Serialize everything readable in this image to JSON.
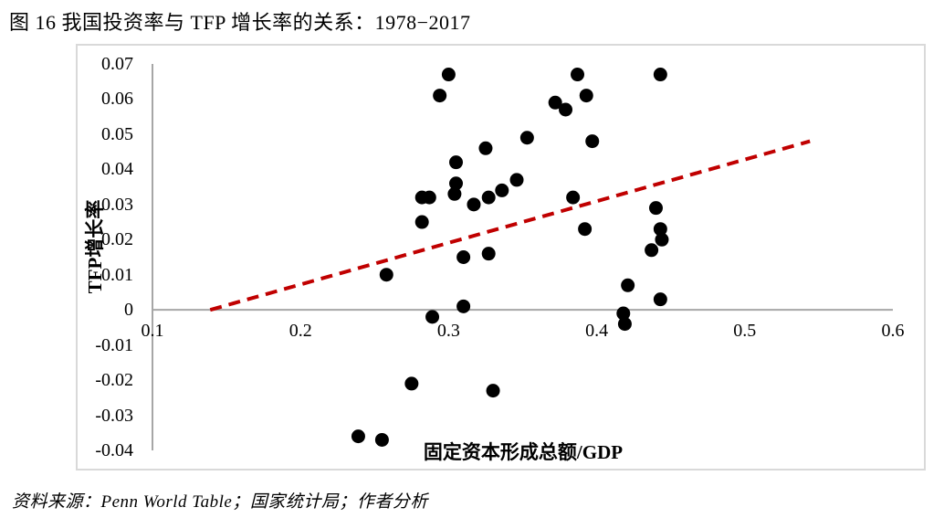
{
  "title": "图 16 我国投资率与 TFP 增长率的关系：1978−2017",
  "source": "资料来源：Penn World Table；国家统计局；作者分析",
  "colors": {
    "dot": "#000000",
    "trendline": "#c00000",
    "axis_line": "#a6a6a6",
    "frame_border": "#d9d9d9",
    "text": "#000000"
  },
  "chart_data": {
    "type": "scatter",
    "title": "图 16 我国投资率与 TFP 增长率的关系：1978−2017",
    "xlabel": "固定资本形成总额/GDP",
    "ylabel": "TFP增长率",
    "xlim": [
      0.1,
      0.6
    ],
    "ylim": [
      -0.04,
      0.07
    ],
    "x_ticks": [
      "0.1",
      "0.2",
      "0.3",
      "0.4",
      "0.5",
      "0.6"
    ],
    "y_ticks": [
      "0.07",
      "0.06",
      "0.05",
      "0.04",
      "0.03",
      "0.02",
      "0.01",
      "0",
      "-0.01",
      "-0.02",
      "-0.03",
      "-0.04"
    ],
    "grid": false,
    "legend": "none",
    "series": [
      {
        "name": "TFP增长率",
        "marker": "circle",
        "color": "#000000",
        "points": [
          [
            0.3,
            0.067
          ],
          [
            0.294,
            0.061
          ],
          [
            0.387,
            0.067
          ],
          [
            0.393,
            0.061
          ],
          [
            0.372,
            0.059
          ],
          [
            0.379,
            0.057
          ],
          [
            0.443,
            0.067
          ],
          [
            0.353,
            0.049
          ],
          [
            0.397,
            0.048
          ],
          [
            0.325,
            0.046
          ],
          [
            0.305,
            0.042
          ],
          [
            0.305,
            0.036
          ],
          [
            0.346,
            0.037
          ],
          [
            0.304,
            0.033
          ],
          [
            0.282,
            0.032
          ],
          [
            0.287,
            0.032
          ],
          [
            0.336,
            0.034
          ],
          [
            0.327,
            0.032
          ],
          [
            0.317,
            0.03
          ],
          [
            0.384,
            0.032
          ],
          [
            0.282,
            0.025
          ],
          [
            0.392,
            0.023
          ],
          [
            0.44,
            0.029
          ],
          [
            0.443,
            0.023
          ],
          [
            0.444,
            0.02
          ],
          [
            0.437,
            0.017
          ],
          [
            0.31,
            0.015
          ],
          [
            0.327,
            0.016
          ],
          [
            0.258,
            0.01
          ],
          [
            0.421,
            0.007
          ],
          [
            0.443,
            0.003
          ],
          [
            0.31,
            0.001
          ],
          [
            0.289,
            -0.002
          ],
          [
            0.418,
            -0.001
          ],
          [
            0.419,
            -0.004
          ],
          [
            0.275,
            -0.021
          ],
          [
            0.33,
            -0.023
          ],
          [
            0.239,
            -0.036
          ],
          [
            0.255,
            -0.037
          ]
        ]
      }
    ],
    "trendline": {
      "style": "dashed",
      "color": "#c00000",
      "from": [
        0.139,
        0.0
      ],
      "to": [
        0.544,
        0.048
      ]
    }
  }
}
